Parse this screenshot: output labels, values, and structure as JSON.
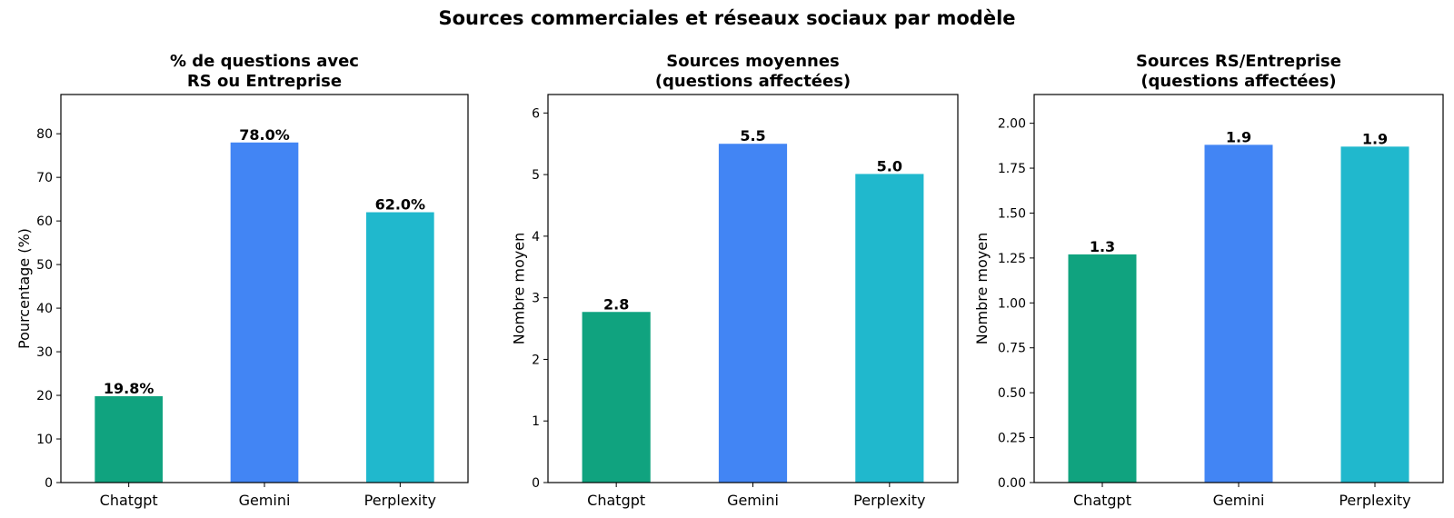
{
  "figure": {
    "suptitle": "Sources commerciales et réseaux sociaux par modèle"
  },
  "colors": {
    "Chatgpt": "#10a37f",
    "Gemini": "#4285f4",
    "Perplexity": "#20b8cd"
  },
  "chart_data": [
    {
      "type": "bar",
      "title": [
        "% de questions avec",
        "RS ou Entreprise"
      ],
      "xlabel": "",
      "ylabel": "Pourcentage (%)",
      "categories": [
        "Chatgpt",
        "Gemini",
        "Perplexity"
      ],
      "values": [
        19.8,
        78.0,
        62.0
      ],
      "data_labels": [
        "19.8%",
        "78.0%",
        "62.0%"
      ],
      "ylim": [
        0,
        89
      ],
      "yticks": [
        0,
        10,
        20,
        30,
        40,
        50,
        60,
        70,
        80
      ],
      "ytick_labels": [
        "0",
        "10",
        "20",
        "30",
        "40",
        "50",
        "60",
        "70",
        "80"
      ],
      "grid": false,
      "legend": "none"
    },
    {
      "type": "bar",
      "title": [
        "Sources moyennes",
        "(questions affectées)"
      ],
      "xlabel": "",
      "ylabel": "Nombre moyen",
      "categories": [
        "Chatgpt",
        "Gemini",
        "Perplexity"
      ],
      "values": [
        2.77,
        5.5,
        5.01
      ],
      "data_labels": [
        "2.8",
        "5.5",
        "5.0"
      ],
      "ylim": [
        0,
        6.3
      ],
      "yticks": [
        0,
        1,
        2,
        3,
        4,
        5,
        6
      ],
      "ytick_labels": [
        "0",
        "1",
        "2",
        "3",
        "4",
        "5",
        "6"
      ],
      "grid": false,
      "legend": "none"
    },
    {
      "type": "bar",
      "title": [
        "Sources RS/Entreprise",
        "(questions affectées)"
      ],
      "xlabel": "",
      "ylabel": "Nombre moyen",
      "categories": [
        "Chatgpt",
        "Gemini",
        "Perplexity"
      ],
      "values": [
        1.27,
        1.88,
        1.87
      ],
      "data_labels": [
        "1.3",
        "1.9",
        "1.9"
      ],
      "ylim": [
        0,
        2.16
      ],
      "yticks": [
        0,
        0.25,
        0.5,
        0.75,
        1.0,
        1.25,
        1.5,
        1.75,
        2.0
      ],
      "ytick_labels": [
        "0.00",
        "0.25",
        "0.50",
        "0.75",
        "1.00",
        "1.25",
        "1.50",
        "1.75",
        "2.00"
      ],
      "grid": false,
      "legend": "none"
    }
  ]
}
